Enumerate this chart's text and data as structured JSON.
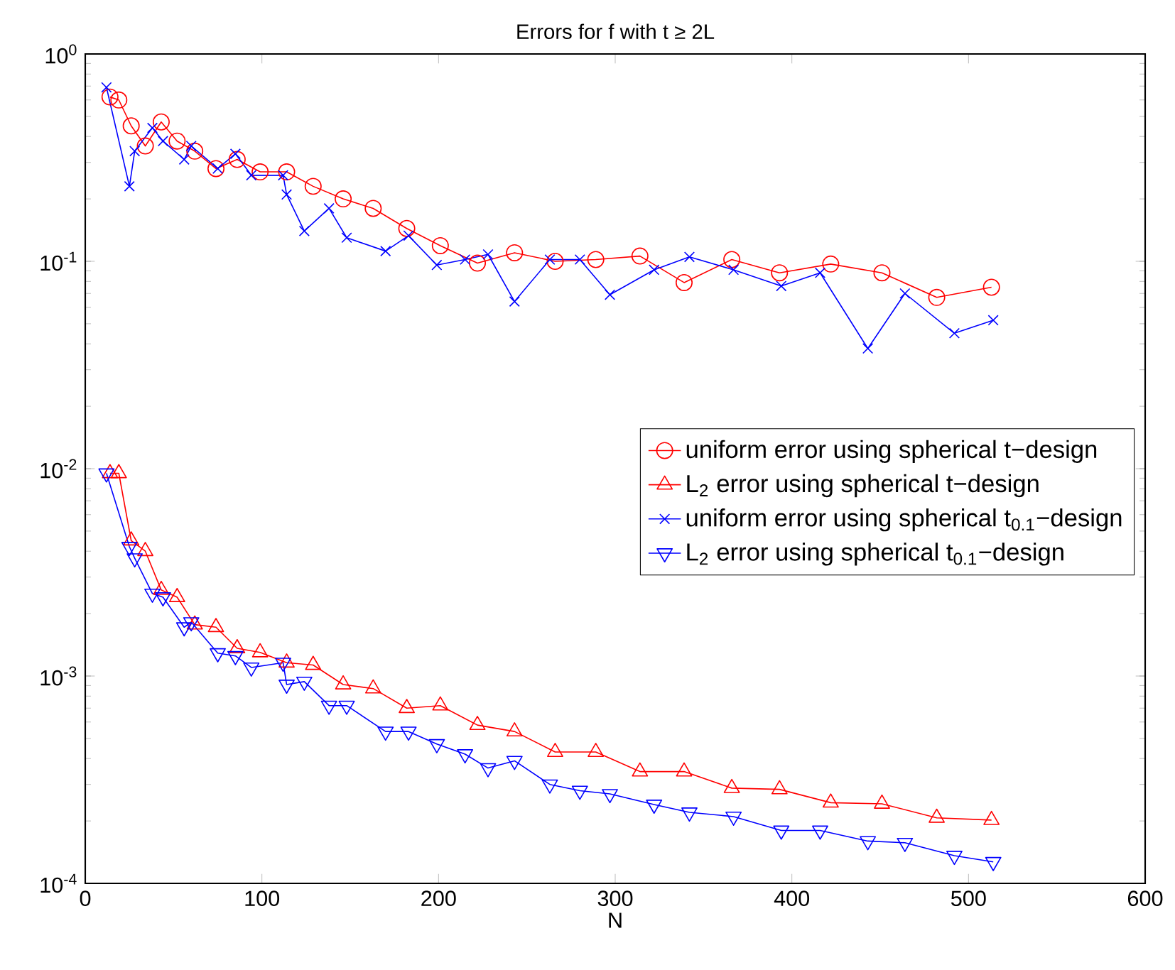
{
  "chart_data": {
    "type": "line",
    "title": "Errors for f with t ≥ 2L",
    "xlabel": "N",
    "log": "y",
    "xlim": [
      0,
      600
    ],
    "xticks": [
      0,
      100,
      200,
      300,
      400,
      500,
      600
    ],
    "ylim": [
      0.0001,
      1
    ],
    "yticks": [
      {
        "value": 0.0001,
        "label": "10$^{-4}$"
      },
      {
        "value": 0.001,
        "label": "10$^{-3}$"
      },
      {
        "value": 0.01,
        "label": "10$^{-2}$"
      },
      {
        "value": 0.1,
        "label": "10$^{-1}$"
      },
      {
        "value": 1,
        "label": "10$^{0}$"
      }
    ],
    "grid": false,
    "legend": "right",
    "line_style": "solid",
    "series": [
      {
        "name": "uniform error using spherical t−design",
        "color": "#ff0000",
        "marker": "circle",
        "x": [
          14,
          19,
          26,
          34,
          43,
          52,
          62,
          74,
          86,
          99,
          114,
          129,
          146,
          163,
          182,
          201,
          222,
          243,
          266,
          289,
          314,
          339,
          366,
          393,
          422,
          451,
          482,
          513
        ],
        "values": [
          0.62,
          0.6,
          0.45,
          0.36,
          0.47,
          0.38,
          0.34,
          0.28,
          0.31,
          0.27,
          0.27,
          0.23,
          0.2,
          0.18,
          0.144,
          0.119,
          0.098,
          0.11,
          0.1,
          0.102,
          0.106,
          0.079,
          0.102,
          0.088,
          0.097,
          0.088,
          0.067,
          0.075
        ]
      },
      {
        "name": "L$_{2}$ error using spherical t−design",
        "color": "#ff0000",
        "marker": "triangle",
        "x": [
          14,
          19,
          26,
          34,
          43,
          52,
          62,
          74,
          86,
          99,
          114,
          129,
          146,
          163,
          182,
          201,
          222,
          243,
          266,
          289,
          314,
          339,
          366,
          393,
          422,
          451,
          482,
          513
        ],
        "values": [
          0.0095,
          0.0095,
          0.0045,
          0.004,
          0.0026,
          0.0024,
          0.00177,
          0.00172,
          0.00136,
          0.0013,
          0.00116,
          0.00113,
          0.00091,
          0.00087,
          0.0007,
          0.00072,
          0.00058,
          0.00054,
          0.00043,
          0.00043,
          0.000346,
          0.000346,
          0.000288,
          0.000284,
          0.000245,
          0.000242,
          0.000207,
          0.000202
        ]
      },
      {
        "name": "uniform error using spherical t$_{0.1}$−design",
        "color": "#0000ff",
        "marker": "cross",
        "x": [
          12,
          25,
          28,
          38,
          44,
          56,
          60,
          75,
          85,
          94,
          112,
          114,
          124,
          138,
          148,
          170,
          183,
          199,
          215,
          228,
          243,
          263,
          280,
          297,
          322,
          342,
          367,
          394,
          416,
          443,
          464,
          492,
          514
        ],
        "values": [
          0.69,
          0.23,
          0.34,
          0.44,
          0.38,
          0.31,
          0.36,
          0.28,
          0.33,
          0.26,
          0.26,
          0.21,
          0.14,
          0.18,
          0.13,
          0.112,
          0.133,
          0.096,
          0.102,
          0.108,
          0.064,
          0.102,
          0.102,
          0.069,
          0.091,
          0.105,
          0.091,
          0.076,
          0.088,
          0.038,
          0.07,
          0.045,
          0.052
        ]
      },
      {
        "name": "L$_{2}$ error using spherical t$_{0.1}$−design",
        "color": "#0000ff",
        "marker": "triangle down",
        "x": [
          12,
          25,
          28,
          38,
          44,
          56,
          60,
          75,
          85,
          94,
          112,
          114,
          124,
          138,
          148,
          170,
          183,
          199,
          215,
          228,
          243,
          263,
          280,
          297,
          322,
          342,
          367,
          394,
          416,
          443,
          464,
          492,
          514
        ],
        "values": [
          0.0095,
          0.0042,
          0.0037,
          0.0025,
          0.0024,
          0.00172,
          0.00182,
          0.00129,
          0.00125,
          0.0011,
          0.00116,
          0.00091,
          0.00094,
          0.00072,
          0.00072,
          0.00054,
          0.00054,
          0.00047,
          0.00042,
          0.00036,
          0.00039,
          0.0003,
          0.00028,
          0.00027,
          0.00024,
          0.00022,
          0.00021,
          0.00018,
          0.00018,
          0.00016,
          0.000157,
          0.000136,
          0.000127
        ]
      }
    ]
  }
}
